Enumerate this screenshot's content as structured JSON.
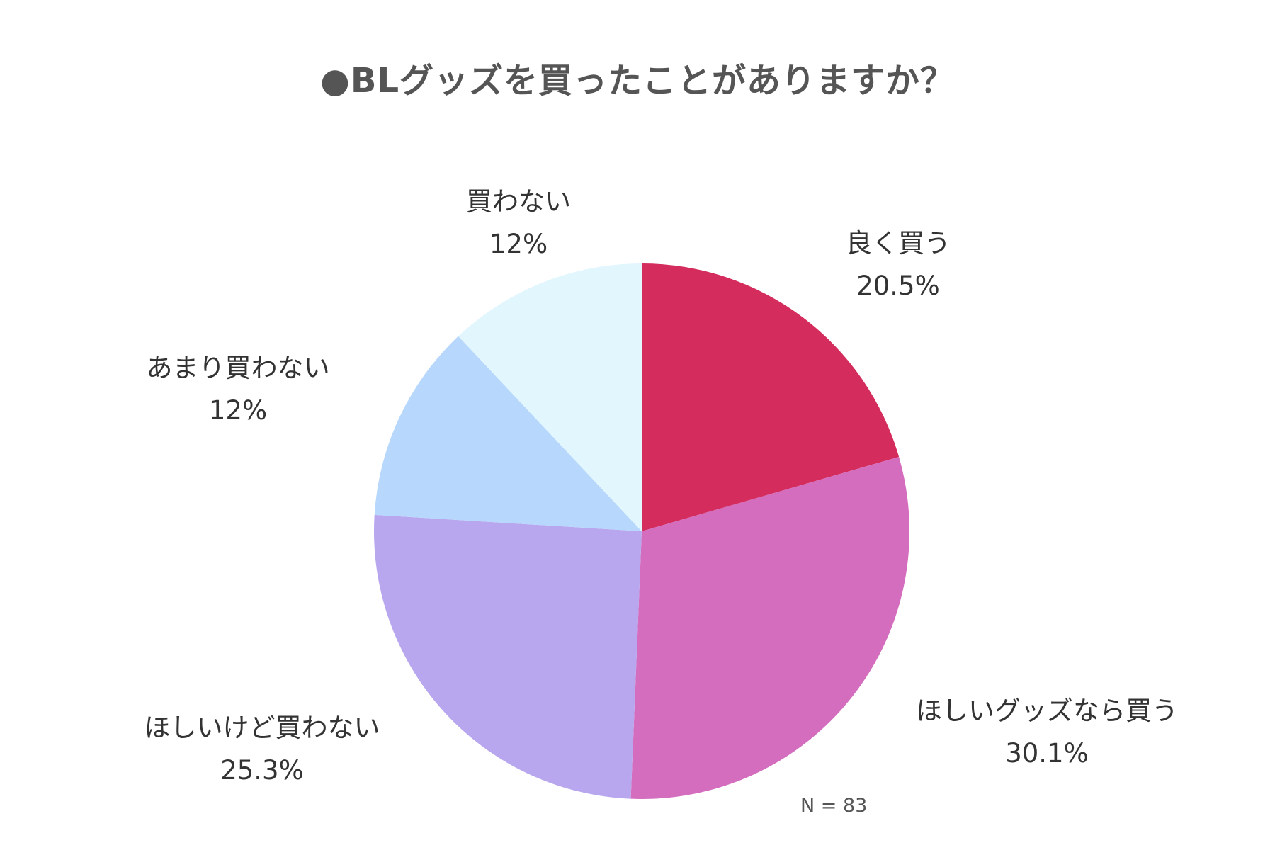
{
  "chart_data": {
    "type": "pie",
    "title": "●BLグッズを買ったことがありますか？",
    "note": "N = 83",
    "start": "12 o'clock, clockwise",
    "slices": [
      {
        "label": "良く買う",
        "value": 20.5,
        "value_label": "20.5%",
        "color": "#D42C5C"
      },
      {
        "label": "ほしいグッズなら買う",
        "value": 30.1,
        "value_label": "30.1%",
        "color": "#D46DBE"
      },
      {
        "label": "ほしいけど買わない",
        "value": 25.3,
        "value_label": "25.3%",
        "color": "#B8A7EE"
      },
      {
        "label": "あまり買わない",
        "value": 12,
        "value_label": "12%",
        "color": "#B7D7FC"
      },
      {
        "label": "買わない",
        "value": 12,
        "value_label": "12%",
        "color": "#E2F6FD"
      }
    ]
  }
}
